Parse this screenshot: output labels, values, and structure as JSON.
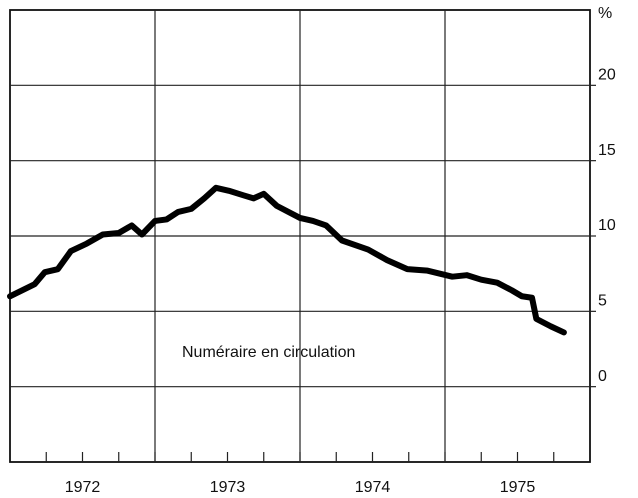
{
  "chart_data": {
    "type": "line",
    "y_axis_label": "%",
    "annotation": "Numéraire en circulation",
    "categories": [
      "1972",
      "1973",
      "1974",
      "1975"
    ],
    "xlim": [
      1972,
      1976
    ],
    "xticks": [
      1973,
      1974,
      1975
    ],
    "ylim": [
      -5,
      25
    ],
    "yticks": [
      0,
      5,
      10,
      15,
      20
    ],
    "grid": true,
    "series": [
      {
        "color": "#000000",
        "x": [
          1972.0,
          1972.17,
          1972.24,
          1972.33,
          1972.42,
          1972.53,
          1972.64,
          1972.75,
          1972.84,
          1972.91,
          1973.0,
          1973.08,
          1973.16,
          1973.25,
          1973.34,
          1973.42,
          1973.51,
          1973.61,
          1973.68,
          1973.75,
          1973.84,
          1974.0,
          1974.09,
          1974.18,
          1974.29,
          1974.47,
          1974.6,
          1974.74,
          1974.88,
          1975.05,
          1975.15,
          1975.25,
          1975.36,
          1975.46,
          1975.53,
          1975.6,
          1975.63,
          1975.73,
          1975.82
        ],
        "values": [
          6.0,
          6.8,
          7.6,
          7.8,
          9.0,
          9.5,
          10.1,
          10.2,
          10.7,
          10.1,
          11.0,
          11.1,
          11.6,
          11.8,
          12.5,
          13.2,
          13.0,
          12.7,
          12.5,
          12.8,
          12.0,
          11.2,
          11.0,
          10.7,
          9.7,
          9.1,
          8.4,
          7.8,
          7.7,
          7.3,
          7.4,
          7.1,
          6.9,
          6.4,
          6.0,
          5.9,
          4.5,
          4.0,
          3.6
        ]
      }
    ]
  }
}
